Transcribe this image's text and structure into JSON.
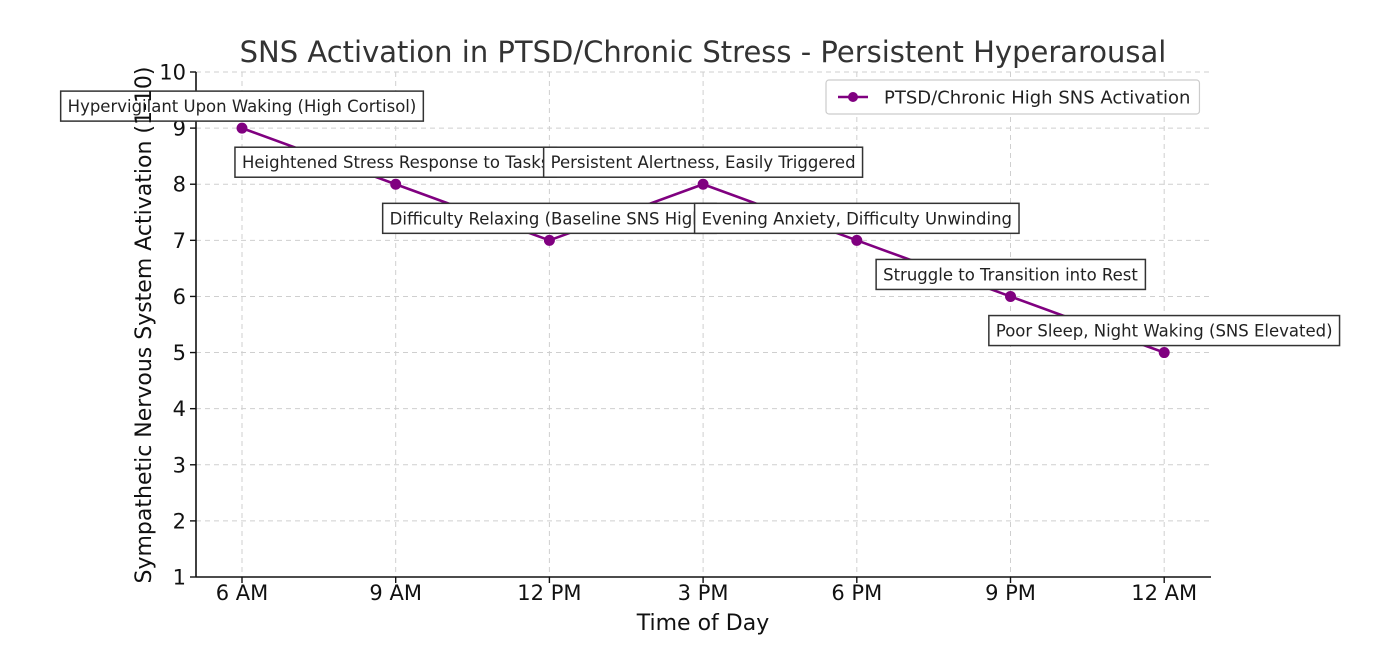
{
  "chart_data": {
    "type": "line",
    "title": "SNS Activation in PTSD/Chronic Stress - Persistent Hyperarousal",
    "xlabel": "Time of Day",
    "ylabel": "Sympathetic Nervous System Activation (1-10)",
    "categories": [
      "6 AM",
      "9 AM",
      "12 PM",
      "3 PM",
      "6 PM",
      "9 PM",
      "12 AM"
    ],
    "ylim": [
      1,
      10
    ],
    "yticks": [
      1,
      2,
      3,
      4,
      5,
      6,
      7,
      8,
      9,
      10
    ],
    "grid": true,
    "legend_position": "top-right",
    "series": [
      {
        "name": "PTSD/Chronic High SNS Activation",
        "color": "#800080",
        "marker": "circle",
        "values": [
          9,
          8,
          7,
          8,
          7,
          6,
          5
        ]
      }
    ],
    "annotations": [
      {
        "category": "6 AM",
        "value": 9,
        "text": "Hypervigilant Upon Waking (High Cortisol)"
      },
      {
        "category": "9 AM",
        "value": 8,
        "text": "Heightened Stress Response to Tasks"
      },
      {
        "category": "12 PM",
        "value": 7,
        "text": "Difficulty Relaxing (Baseline SNS High)"
      },
      {
        "category": "3 PM",
        "value": 8,
        "text": "Persistent Alertness, Easily Triggered"
      },
      {
        "category": "6 PM",
        "value": 7,
        "text": "Evening Anxiety, Difficulty Unwinding"
      },
      {
        "category": "9 PM",
        "value": 6,
        "text": "Struggle to Transition into Rest"
      },
      {
        "category": "12 AM",
        "value": 5,
        "text": "Poor Sleep, Night Waking (SNS Elevated)"
      }
    ]
  }
}
